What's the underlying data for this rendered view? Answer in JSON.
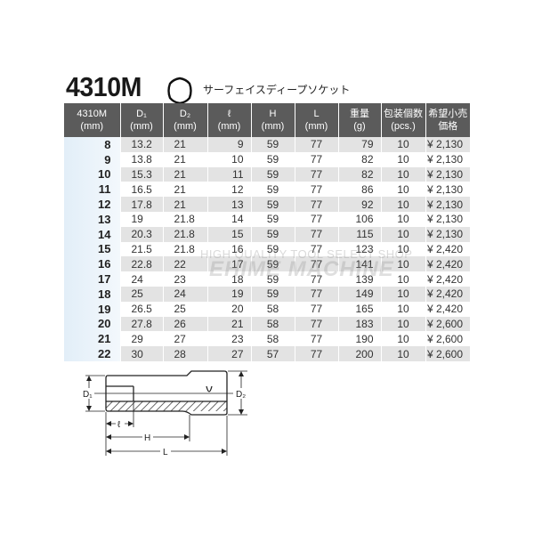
{
  "title": "4310M",
  "subtitle": "サーフェイスディープソケット",
  "icon": "hexagon-surface-icon",
  "watermark": {
    "line1": "HIGH QUALITY TOOL SELECT SHOP",
    "line2": "EHIME MACHINE"
  },
  "table": {
    "headers": [
      [
        "4310M",
        "(mm)"
      ],
      [
        "D₁",
        "(mm)"
      ],
      [
        "D₂",
        "(mm)"
      ],
      [
        "ℓ",
        "(mm)"
      ],
      [
        "H",
        "(mm)"
      ],
      [
        "L",
        "(mm)"
      ],
      [
        "重量",
        "(g)"
      ],
      [
        "包装個数",
        "(pcs.)"
      ],
      [
        "希望小売",
        "価格"
      ]
    ],
    "rows": [
      [
        "8",
        "13.2",
        "21",
        "9",
        "59",
        "77",
        "79",
        "10",
        "¥ 2,130"
      ],
      [
        "9",
        "13.8",
        "21",
        "10",
        "59",
        "77",
        "82",
        "10",
        "¥ 2,130"
      ],
      [
        "10",
        "15.3",
        "21",
        "11",
        "59",
        "77",
        "82",
        "10",
        "¥ 2,130"
      ],
      [
        "11",
        "16.5",
        "21",
        "12",
        "59",
        "77",
        "86",
        "10",
        "¥ 2,130"
      ],
      [
        "12",
        "17.8",
        "21",
        "13",
        "59",
        "77",
        "92",
        "10",
        "¥ 2,130"
      ],
      [
        "13",
        "19",
        "21.8",
        "14",
        "59",
        "77",
        "106",
        "10",
        "¥ 2,130"
      ],
      [
        "14",
        "20.3",
        "21.8",
        "15",
        "59",
        "77",
        "115",
        "10",
        "¥ 2,130"
      ],
      [
        "15",
        "21.5",
        "21.8",
        "16",
        "59",
        "77",
        "123",
        "10",
        "¥ 2,420"
      ],
      [
        "16",
        "22.8",
        "22",
        "17",
        "59",
        "77",
        "141",
        "10",
        "¥ 2,420"
      ],
      [
        "17",
        "24",
        "23",
        "18",
        "59",
        "77",
        "139",
        "10",
        "¥ 2,420"
      ],
      [
        "18",
        "25",
        "24",
        "19",
        "59",
        "77",
        "149",
        "10",
        "¥ 2,420"
      ],
      [
        "19",
        "26.5",
        "25",
        "20",
        "58",
        "77",
        "165",
        "10",
        "¥ 2,420"
      ],
      [
        "20",
        "27.8",
        "26",
        "21",
        "58",
        "77",
        "183",
        "10",
        "¥ 2,600"
      ],
      [
        "21",
        "29",
        "27",
        "23",
        "58",
        "77",
        "190",
        "10",
        "¥ 2,600"
      ],
      [
        "22",
        "30",
        "28",
        "27",
        "57",
        "77",
        "200",
        "10",
        "¥ 2,600"
      ]
    ]
  },
  "diagram": {
    "d1": "D₁",
    "d2": "D₂",
    "l_small": "ℓ",
    "h": "H",
    "l": "L"
  }
}
